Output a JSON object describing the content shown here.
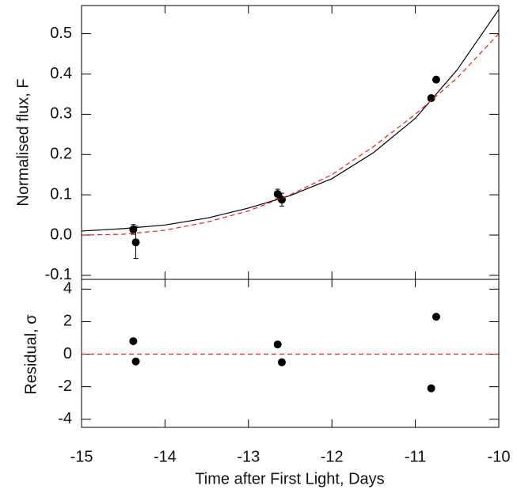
{
  "chart_data": [
    {
      "type": "scatter",
      "ylabel": "Normalised flux, F",
      "xlim": [
        -15,
        -10
      ],
      "ylim": [
        -0.11,
        0.57
      ],
      "yticks": [
        -0.1,
        {
          "value": 0,
          "label": "0.0"
        },
        0.1,
        0.2,
        0.3,
        0.4,
        0.5
      ],
      "series": [
        {
          "style": "points",
          "color": "#000000",
          "x": [
            -14.38,
            -14.35,
            -12.65,
            -12.6,
            -10.81,
            -10.75
          ],
          "values": [
            0.014,
            -0.018,
            0.102,
            0.088,
            0.34,
            0.386
          ],
          "errors": [
            0.012,
            0.04,
            0.012,
            0.016,
            0.005,
            0.006
          ]
        },
        {
          "style": "solid",
          "color": "#000000",
          "x": [
            -15,
            -14.5,
            -14,
            -13.5,
            -13,
            -12.5,
            -12,
            -11.5,
            -11,
            -10.5,
            -10
          ],
          "values": [
            0.01,
            0.016,
            0.025,
            0.042,
            0.067,
            0.098,
            0.14,
            0.205,
            0.29,
            0.41,
            0.56
          ]
        },
        {
          "style": "dashed",
          "color": "#dd2222",
          "x": [
            -15,
            -14.5,
            -14,
            -13.5,
            -13,
            -12.5,
            -12,
            -11.5,
            -11,
            -10.5,
            -10
          ],
          "values": [
            0,
            0.002,
            0.012,
            0.032,
            0.06,
            0.1,
            0.15,
            0.22,
            0.3,
            0.39,
            0.5
          ]
        }
      ]
    },
    {
      "type": "scatter",
      "ylabel": "Residual, σ",
      "xlabel": "Time after First Light, Days",
      "xlim": [
        -15,
        -10
      ],
      "ylim": [
        -4.5,
        4.6
      ],
      "xticks": [
        -15,
        -14,
        -13,
        -12,
        -11,
        -10
      ],
      "yticks": [
        -4,
        -2,
        0,
        2,
        4
      ],
      "series": [
        {
          "style": "points",
          "color": "#000000",
          "x": [
            -14.38,
            -14.35,
            -12.65,
            -12.6,
            -10.81,
            -10.75
          ],
          "values": [
            0.8,
            -0.45,
            0.6,
            -0.5,
            -2.1,
            2.3
          ]
        },
        {
          "style": "dashed",
          "color": "#dd2222",
          "x": [
            -15,
            -10
          ],
          "values": [
            0,
            0
          ]
        }
      ]
    }
  ]
}
